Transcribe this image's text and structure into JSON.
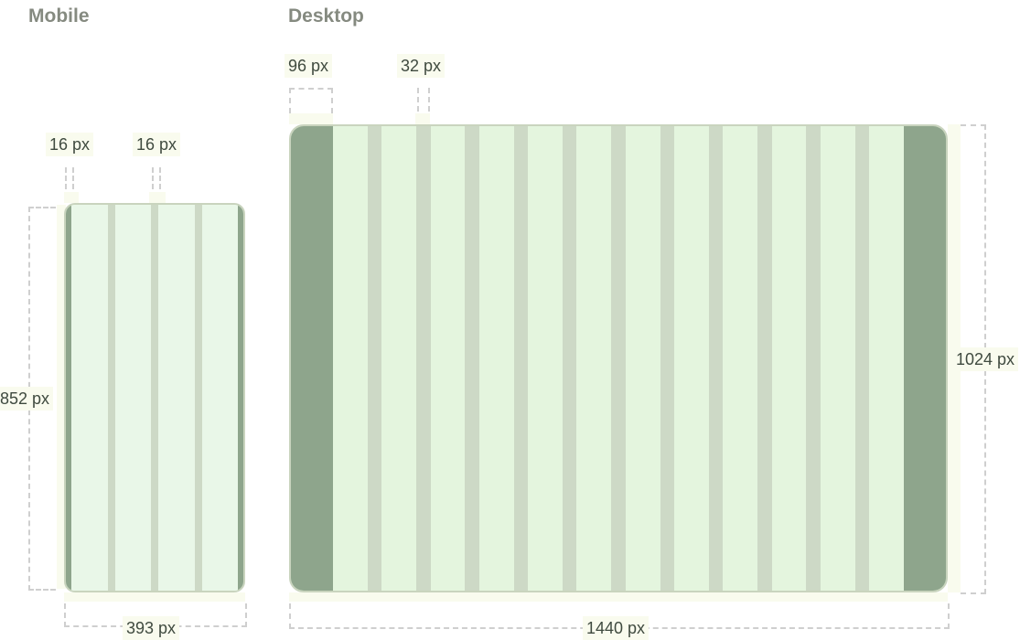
{
  "mobile": {
    "heading": "Mobile",
    "margin_label": "16 px",
    "gutter_label": "16 px",
    "width_label": "393 px",
    "height_label": "852 px",
    "columns": 4
  },
  "desktop": {
    "heading": "Desktop",
    "margin_label": "96 px",
    "gutter_label": "32 px",
    "width_label": "1440 px",
    "height_label": "1024 px",
    "columns": 12
  },
  "colors": {
    "mobile_column": "#e9f7e8",
    "desktop_column": "#e4f5de",
    "gutter": "#cdd9c6",
    "margin": "#8ea58c",
    "highlight": "#f9fbee",
    "dashed_line": "#cfcfcf"
  }
}
